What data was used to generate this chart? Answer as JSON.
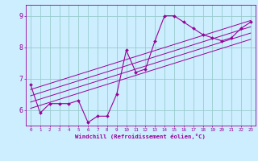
{
  "xlabel": "Windchill (Refroidissement éolien,°C)",
  "bg_color": "#cceeff",
  "line_color": "#990099",
  "grid_color": "#99cccc",
  "x_data": [
    0,
    1,
    2,
    3,
    4,
    5,
    6,
    7,
    8,
    9,
    10,
    11,
    12,
    13,
    14,
    15,
    16,
    17,
    18,
    19,
    20,
    21,
    22,
    23
  ],
  "y_data": [
    6.8,
    5.9,
    6.2,
    6.2,
    6.2,
    6.3,
    5.6,
    5.8,
    5.8,
    6.5,
    7.9,
    7.2,
    7.3,
    8.2,
    9.0,
    9.0,
    8.8,
    8.6,
    8.4,
    8.3,
    8.2,
    8.3,
    8.6,
    8.8
  ],
  "reg_lines": [
    {
      "x0": 0,
      "y0": 6.25,
      "x1": 23,
      "y1": 8.45
    },
    {
      "x0": 0,
      "y0": 6.45,
      "x1": 23,
      "y1": 8.65
    },
    {
      "x0": 0,
      "y0": 6.05,
      "x1": 23,
      "y1": 8.25
    },
    {
      "x0": 0,
      "y0": 6.65,
      "x1": 23,
      "y1": 8.85
    }
  ],
  "ylim": [
    5.5,
    9.35
  ],
  "xlim": [
    -0.5,
    23.5
  ],
  "yticks": [
    6,
    7,
    8,
    9
  ],
  "xticks": [
    0,
    1,
    2,
    3,
    4,
    5,
    6,
    7,
    8,
    9,
    10,
    11,
    12,
    13,
    14,
    15,
    16,
    17,
    18,
    19,
    20,
    21,
    22,
    23
  ]
}
